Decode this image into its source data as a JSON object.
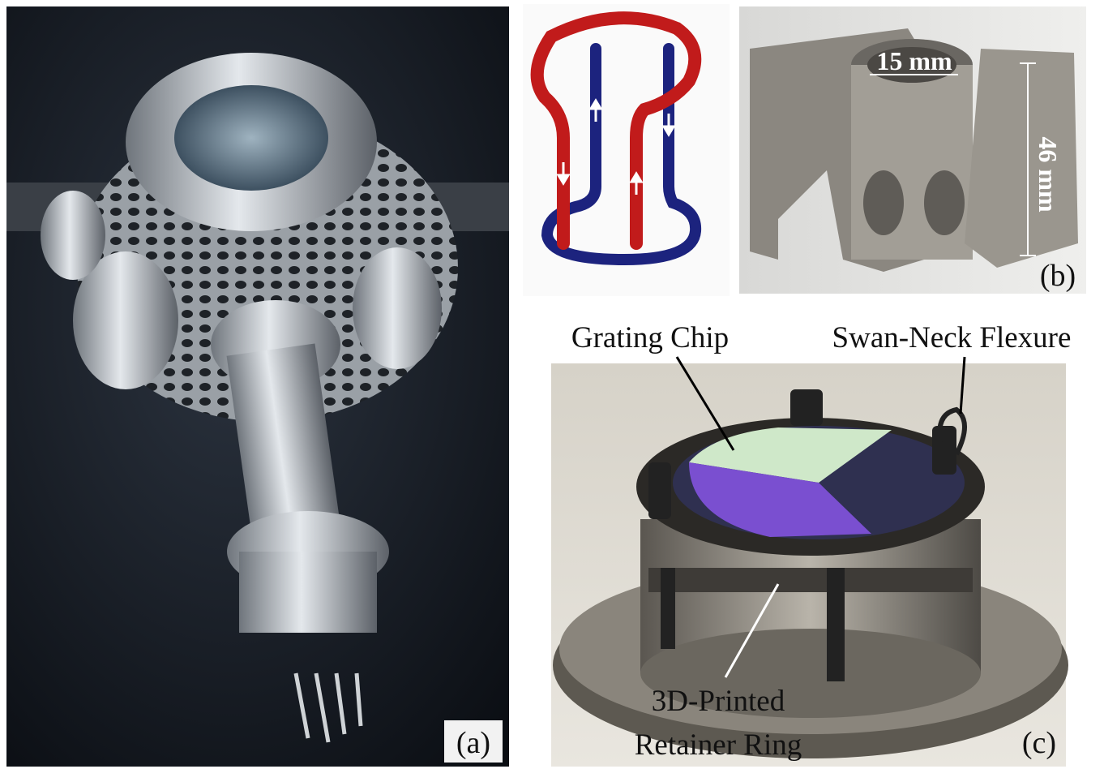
{
  "panels": [
    {
      "label": "(a)"
    },
    {
      "label": "(b)",
      "annotations": [
        "15 mm",
        "46 mm"
      ]
    },
    {
      "label": "(c)",
      "annotations": [
        "Grating Chip",
        "Swan-Neck Flexure",
        "3D-Printed",
        "Retainer Ring"
      ]
    }
  ]
}
